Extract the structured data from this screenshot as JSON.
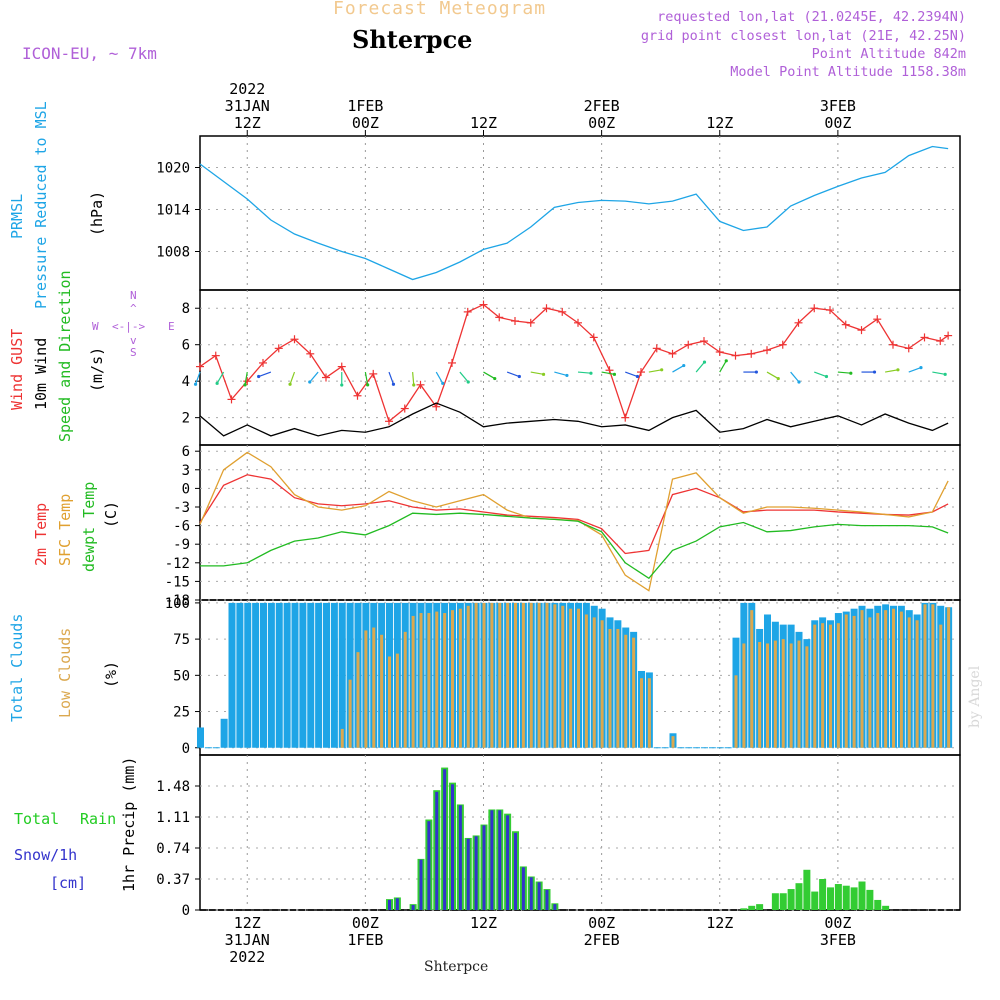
{
  "header": {
    "chart_title": "Forecast Meteogram",
    "station": "Shterpce",
    "model": "ICON-EU, ~ 7km",
    "requested": "requested lon,lat (21.0245E, 42.2394N)",
    "grid_point": "grid point closest lon,lat (21E, 42.25N)",
    "point_altitude": "Point Altitude 842m",
    "model_altitude": "Model Point Altitude 1158.38m",
    "footer": "Shterpce",
    "signature": "by Angel"
  },
  "time_axis": {
    "top": [
      {
        "lines": [
          "2022",
          "31JAN",
          "12Z"
        ]
      },
      {
        "lines": [
          "1FEB",
          "00Z"
        ]
      },
      {
        "lines": [
          "12Z"
        ]
      },
      {
        "lines": [
          "2FEB",
          "00Z"
        ]
      },
      {
        "lines": [
          "12Z"
        ]
      },
      {
        "lines": [
          "3FEB",
          "00Z"
        ]
      }
    ],
    "bottom": [
      {
        "lines": [
          "12Z",
          "31JAN",
          "2022"
        ]
      },
      {
        "lines": [
          "00Z",
          "1FEB"
        ]
      },
      {
        "lines": [
          "12Z"
        ]
      },
      {
        "lines": [
          "00Z",
          "2FEB"
        ]
      },
      {
        "lines": [
          "12Z"
        ]
      },
      {
        "lines": [
          "00Z",
          "3FEB"
        ]
      }
    ]
  },
  "colors": {
    "pressure": "#1ea5e6",
    "gust": "#ee3333",
    "wind10m": "#000000",
    "temp2m": "#ee3333",
    "sfc_temp": "#e0a030",
    "dewpt": "#22bb22",
    "total_clouds": "#1ea5e6",
    "low_clouds": "#dba84f",
    "rain": "#33cc33",
    "snow": "#3333cc",
    "label_purple": "#b060d8",
    "label_green": "#22cc22"
  },
  "panels": {
    "pressure": {
      "label1": "PRMSL",
      "label2": "Pressure Reduced to MSL",
      "unit": "(hPa)"
    },
    "wind": {
      "label_gust": "Wind GUST",
      "label_10m": "10m Wind",
      "label_dir": "Speed and Direction",
      "unit": "(m/s)",
      "compass": {
        "n": "N",
        "s": "S",
        "w": "W",
        "e": "E",
        "up": "^",
        "dn": "v",
        "mid": "<-|->"
      }
    },
    "temp": {
      "label_2m": "2m Temp",
      "label_sfc": "SFC Temp",
      "label_dew": "dewpt Temp",
      "unit": "(C)"
    },
    "clouds": {
      "label_total": "Total Clouds",
      "label_low": "Low Clouds",
      "unit": "(%)"
    },
    "precip": {
      "label_total": "Total",
      "label_rain": "Rain",
      "label_snow": "Snow/1h",
      "label_cm": "[cm]",
      "unit": "1hr Precip (mm)"
    }
  },
  "chart_data": [
    {
      "type": "line",
      "title": "PRMSL Pressure Reduced to MSL",
      "ylabel": "hPa",
      "ylim": [
        1002.5,
        1024.5
      ],
      "yticks": [
        1008,
        1014,
        1020
      ],
      "x_hours": [
        0,
        3,
        6,
        9,
        12,
        15,
        18,
        21,
        24,
        27,
        30,
        33,
        36,
        39,
        42,
        45,
        48,
        51,
        54,
        57,
        60,
        63,
        66,
        69,
        72,
        75,
        78,
        81,
        84,
        87,
        90,
        93,
        95
      ],
      "values": [
        1020.5,
        1018.0,
        1015.5,
        1012.5,
        1010.5,
        1009.2,
        1008.0,
        1007.0,
        1005.5,
        1004.0,
        1005.0,
        1006.5,
        1008.3,
        1009.2,
        1011.5,
        1014.3,
        1015.0,
        1015.3,
        1015.2,
        1014.8,
        1015.2,
        1016.2,
        1012.3,
        1011.0,
        1011.5,
        1014.5,
        1016.0,
        1017.3,
        1018.5,
        1019.3,
        1021.7,
        1023.0,
        1022.7
      ]
    },
    {
      "type": "line",
      "title": "Wind GUST / 10m Wind Speed and Direction",
      "ylabel": "m/s",
      "ylim": [
        0.5,
        9.0
      ],
      "yticks": [
        2,
        4,
        6,
        8
      ],
      "series": [
        {
          "name": "Wind GUST",
          "x_hours": [
            0,
            2,
            4,
            6,
            8,
            10,
            12,
            14,
            16,
            18,
            20,
            22,
            24,
            26,
            28,
            30,
            32,
            34,
            36,
            38,
            40,
            42,
            44,
            46,
            48,
            50,
            52,
            54,
            56,
            58,
            60,
            62,
            64,
            66,
            68,
            70,
            72,
            74,
            76,
            78,
            80,
            82,
            84,
            86,
            88,
            90,
            92,
            94,
            95
          ],
          "values": [
            4.8,
            5.4,
            3.0,
            4.0,
            5.0,
            5.8,
            6.3,
            5.5,
            4.2,
            4.8,
            3.2,
            4.4,
            1.8,
            2.5,
            3.8,
            2.6,
            5.0,
            7.8,
            8.2,
            7.5,
            7.3,
            7.2,
            8.0,
            7.8,
            7.2,
            6.4,
            4.6,
            2.0,
            4.5,
            5.8,
            5.5,
            6.0,
            6.2,
            5.6,
            5.4,
            5.5,
            5.7,
            6.0,
            7.2,
            8.0,
            7.9,
            7.1,
            6.8,
            7.4,
            6.0,
            5.8,
            6.4,
            6.2,
            6.5
          ]
        },
        {
          "name": "10m Wind",
          "x_hours": [
            0,
            3,
            6,
            9,
            12,
            15,
            18,
            21,
            24,
            27,
            30,
            33,
            36,
            39,
            42,
            45,
            48,
            51,
            54,
            57,
            60,
            63,
            66,
            69,
            72,
            75,
            78,
            81,
            84,
            87,
            90,
            93,
            95
          ],
          "values": [
            2.1,
            1.0,
            1.6,
            1.0,
            1.4,
            1.0,
            1.3,
            1.2,
            1.5,
            2.2,
            2.8,
            2.3,
            1.5,
            1.7,
            1.8,
            1.9,
            1.8,
            1.5,
            1.6,
            1.3,
            2.0,
            2.4,
            1.2,
            1.4,
            1.9,
            1.5,
            1.8,
            2.1,
            1.6,
            2.2,
            1.7,
            1.3,
            1.7
          ]
        }
      ]
    },
    {
      "type": "line",
      "title": "2m Temp / SFC Temp / dewpt Temp",
      "ylabel": "C",
      "ylim": [
        -18,
        7
      ],
      "yticks": [
        6,
        3,
        0,
        -3,
        -6,
        -9,
        -12,
        -15,
        -18
      ],
      "x_hours": [
        0,
        3,
        6,
        9,
        12,
        15,
        18,
        21,
        24,
        27,
        30,
        33,
        36,
        39,
        42,
        45,
        48,
        51,
        54,
        57,
        60,
        63,
        66,
        69,
        72,
        75,
        78,
        81,
        84,
        87,
        90,
        93,
        95
      ],
      "series": [
        {
          "name": "2m Temp",
          "values": [
            -5.5,
            0.5,
            2.2,
            1.5,
            -1.5,
            -2.5,
            -2.8,
            -2.5,
            -2.0,
            -3.0,
            -3.5,
            -3.3,
            -3.8,
            -4.3,
            -4.5,
            -4.7,
            -5.0,
            -6.5,
            -10.5,
            -10.0,
            -1.0,
            0.0,
            -1.5,
            -3.8,
            -3.5,
            -3.5,
            -3.5,
            -3.8,
            -4.0,
            -4.2,
            -4.3,
            -3.8,
            -2.5
          ]
        },
        {
          "name": "SFC Temp",
          "values": [
            -5.8,
            3.0,
            5.8,
            3.5,
            -1.0,
            -3.0,
            -3.5,
            -2.8,
            -0.5,
            -2.0,
            -3.0,
            -2.0,
            -1.0,
            -3.5,
            -4.8,
            -5.0,
            -5.2,
            -7.5,
            -14.0,
            -16.5,
            1.5,
            2.5,
            -1.5,
            -4.0,
            -3.0,
            -3.0,
            -3.2,
            -3.5,
            -3.8,
            -4.2,
            -4.6,
            -3.8,
            1.2
          ]
        },
        {
          "name": "dewpt Temp",
          "values": [
            -12.5,
            -12.5,
            -12.0,
            -10.0,
            -8.5,
            -8.0,
            -7.0,
            -7.5,
            -6.0,
            -4.0,
            -4.2,
            -4.0,
            -4.2,
            -4.5,
            -4.8,
            -5.0,
            -5.3,
            -7.0,
            -12.0,
            -14.5,
            -10.0,
            -8.5,
            -6.2,
            -5.5,
            -7.0,
            -6.8,
            -6.2,
            -5.8,
            -6.0,
            -6.0,
            -6.0,
            -6.2,
            -7.2
          ]
        }
      ]
    },
    {
      "type": "bar",
      "title": "Total Clouds / Low Clouds",
      "ylabel": "%",
      "ylim": [
        -5,
        102
      ],
      "yticks": [
        0,
        25,
        50,
        75,
        100
      ],
      "x_hours_start": 0,
      "series": [
        {
          "name": "Total Clouds",
          "values": [
            14,
            0,
            0,
            20,
            100,
            100,
            100,
            100,
            100,
            100,
            100,
            100,
            100,
            100,
            100,
            100,
            100,
            100,
            100,
            100,
            100,
            100,
            100,
            100,
            100,
            100,
            100,
            100,
            100,
            100,
            100,
            100,
            100,
            100,
            100,
            100,
            100,
            100,
            100,
            100,
            100,
            100,
            100,
            100,
            100,
            100,
            100,
            100,
            100,
            100,
            98,
            96,
            90,
            88,
            83,
            80,
            53,
            52,
            0,
            0,
            10,
            0,
            0,
            0,
            0,
            0,
            0,
            0,
            76,
            100,
            100,
            82,
            92,
            87,
            85,
            85,
            80,
            75,
            88,
            90,
            88,
            93,
            94,
            96,
            98,
            96,
            98,
            99,
            98,
            98,
            95,
            92,
            100,
            100,
            98,
            97
          ]
        },
        {
          "name": "Low Clouds",
          "values": [
            0,
            0,
            0,
            0,
            0,
            0,
            0,
            0,
            0,
            0,
            0,
            0,
            0,
            0,
            0,
            0,
            0,
            0,
            13,
            47,
            66,
            81,
            83,
            78,
            63,
            65,
            80,
            91,
            93,
            93,
            94,
            93,
            95,
            96,
            98,
            100,
            100,
            100,
            100,
            100,
            100,
            100,
            100,
            100,
            100,
            99,
            98,
            96,
            96,
            92,
            90,
            88,
            82,
            82,
            78,
            76,
            48,
            48,
            0,
            0,
            8,
            0,
            0,
            0,
            0,
            0,
            0,
            0,
            50,
            72,
            95,
            73,
            72,
            74,
            75,
            72,
            74,
            70,
            85,
            86,
            85,
            86,
            92,
            91,
            95,
            90,
            93,
            95,
            96,
            94,
            90,
            88,
            99,
            99,
            85,
            97
          ]
        }
      ]
    },
    {
      "type": "bar",
      "title": "1hr Precip (mm) Total Rain / Snow",
      "ylabel": "1hr Precip (mm)",
      "ylim": [
        0,
        1.85
      ],
      "yticks": [
        0,
        0.37,
        0.74,
        1.11,
        1.48
      ],
      "ytick_labels": [
        "0",
        "0.37",
        "0.74",
        "1.11",
        "1.48"
      ],
      "bars": [
        {
          "h": 24,
          "total": 0.13,
          "snow": 0.12
        },
        {
          "h": 25,
          "total": 0.15,
          "snow": 0.14
        },
        {
          "h": 27,
          "total": 0.07,
          "snow": 0.06
        },
        {
          "h": 28,
          "total": 0.61,
          "snow": 0.6
        },
        {
          "h": 29,
          "total": 1.08,
          "snow": 1.06
        },
        {
          "h": 30,
          "total": 1.43,
          "snow": 1.41
        },
        {
          "h": 31,
          "total": 1.7,
          "snow": 1.68
        },
        {
          "h": 32,
          "total": 1.52,
          "snow": 1.5
        },
        {
          "h": 33,
          "total": 1.26,
          "snow": 1.25
        },
        {
          "h": 34,
          "total": 0.86,
          "snow": 0.85
        },
        {
          "h": 35,
          "total": 0.89,
          "snow": 0.88
        },
        {
          "h": 36,
          "total": 1.02,
          "snow": 1.01
        },
        {
          "h": 37,
          "total": 1.2,
          "snow": 1.19
        },
        {
          "h": 38,
          "total": 1.2,
          "snow": 1.19
        },
        {
          "h": 39,
          "total": 1.15,
          "snow": 1.13
        },
        {
          "h": 40,
          "total": 0.94,
          "snow": 0.92
        },
        {
          "h": 41,
          "total": 0.52,
          "snow": 0.51
        },
        {
          "h": 42,
          "total": 0.4,
          "snow": 0.39
        },
        {
          "h": 43,
          "total": 0.34,
          "snow": 0.33
        },
        {
          "h": 44,
          "total": 0.25,
          "snow": 0.24
        },
        {
          "h": 45,
          "total": 0.08,
          "snow": 0.07
        },
        {
          "h": 69,
          "total": 0.02,
          "snow": 0
        },
        {
          "h": 70,
          "total": 0.05,
          "snow": 0
        },
        {
          "h": 71,
          "total": 0.07,
          "snow": 0
        },
        {
          "h": 73,
          "total": 0.2,
          "snow": 0
        },
        {
          "h": 74,
          "total": 0.2,
          "snow": 0
        },
        {
          "h": 75,
          "total": 0.25,
          "snow": 0
        },
        {
          "h": 76,
          "total": 0.32,
          "snow": 0
        },
        {
          "h": 77,
          "total": 0.48,
          "snow": 0
        },
        {
          "h": 78,
          "total": 0.22,
          "snow": 0
        },
        {
          "h": 79,
          "total": 0.37,
          "snow": 0
        },
        {
          "h": 80,
          "total": 0.27,
          "snow": 0
        },
        {
          "h": 81,
          "total": 0.31,
          "snow": 0
        },
        {
          "h": 82,
          "total": 0.29,
          "snow": 0
        },
        {
          "h": 83,
          "total": 0.27,
          "snow": 0
        },
        {
          "h": 84,
          "total": 0.34,
          "snow": 0
        },
        {
          "h": 85,
          "total": 0.24,
          "snow": 0
        },
        {
          "h": 86,
          "total": 0.12,
          "snow": 0
        },
        {
          "h": 87,
          "total": 0.05,
          "snow": 0
        }
      ]
    }
  ]
}
